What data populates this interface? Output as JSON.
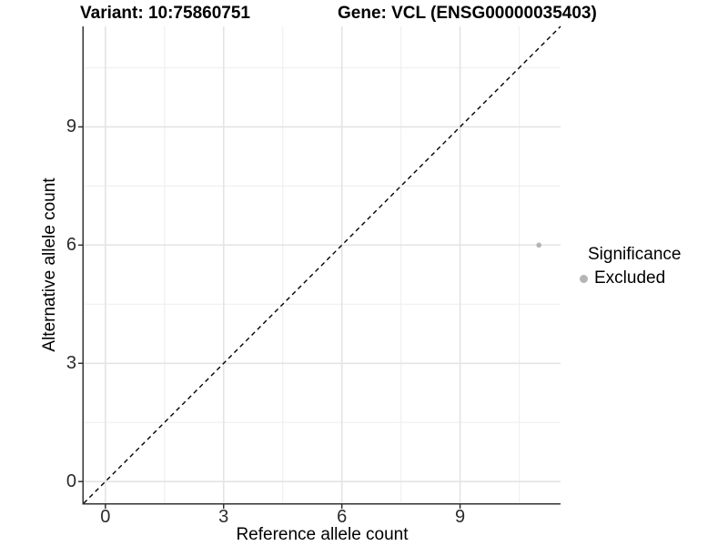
{
  "titles": {
    "variant": "Variant: 10:75860751",
    "gene": "Gene: VCL (ENSG00000035403)"
  },
  "chart_data": {
    "type": "scatter",
    "title_left": "Variant: 10:75860751",
    "title_right": "Gene: VCL (ENSG00000035403)",
    "xlabel": "Reference allele count",
    "ylabel": "Alternative allele count",
    "xlim": [
      -0.55,
      11.55
    ],
    "ylim": [
      -0.55,
      11.55
    ],
    "x_major_ticks": [
      0,
      3,
      6,
      9
    ],
    "y_major_ticks": [
      0,
      3,
      6,
      9
    ],
    "x_minor_ticks": [
      1.5,
      4.5,
      7.5,
      10.5
    ],
    "y_minor_ticks": [
      1.5,
      4.5,
      7.5,
      10.5
    ],
    "grid": true,
    "identity_line": {
      "slope": 1,
      "intercept": 0,
      "style": "dashed",
      "color": "#000000"
    },
    "series": [
      {
        "name": "Excluded",
        "color": "#b5b5b5",
        "points": [
          {
            "x": 11,
            "y": 6
          }
        ]
      }
    ],
    "legend": {
      "title": "Significance",
      "position": "right",
      "items": [
        {
          "label": "Excluded",
          "color": "#b5b5b5"
        }
      ]
    }
  },
  "colors": {
    "background": "#ffffff",
    "axis_line": "#333333",
    "tick_mark": "#333333",
    "grid_major": "#e4e4e4",
    "grid_minor": "#f0f0f0",
    "point": "#b5b5b5",
    "text": "#000000"
  }
}
